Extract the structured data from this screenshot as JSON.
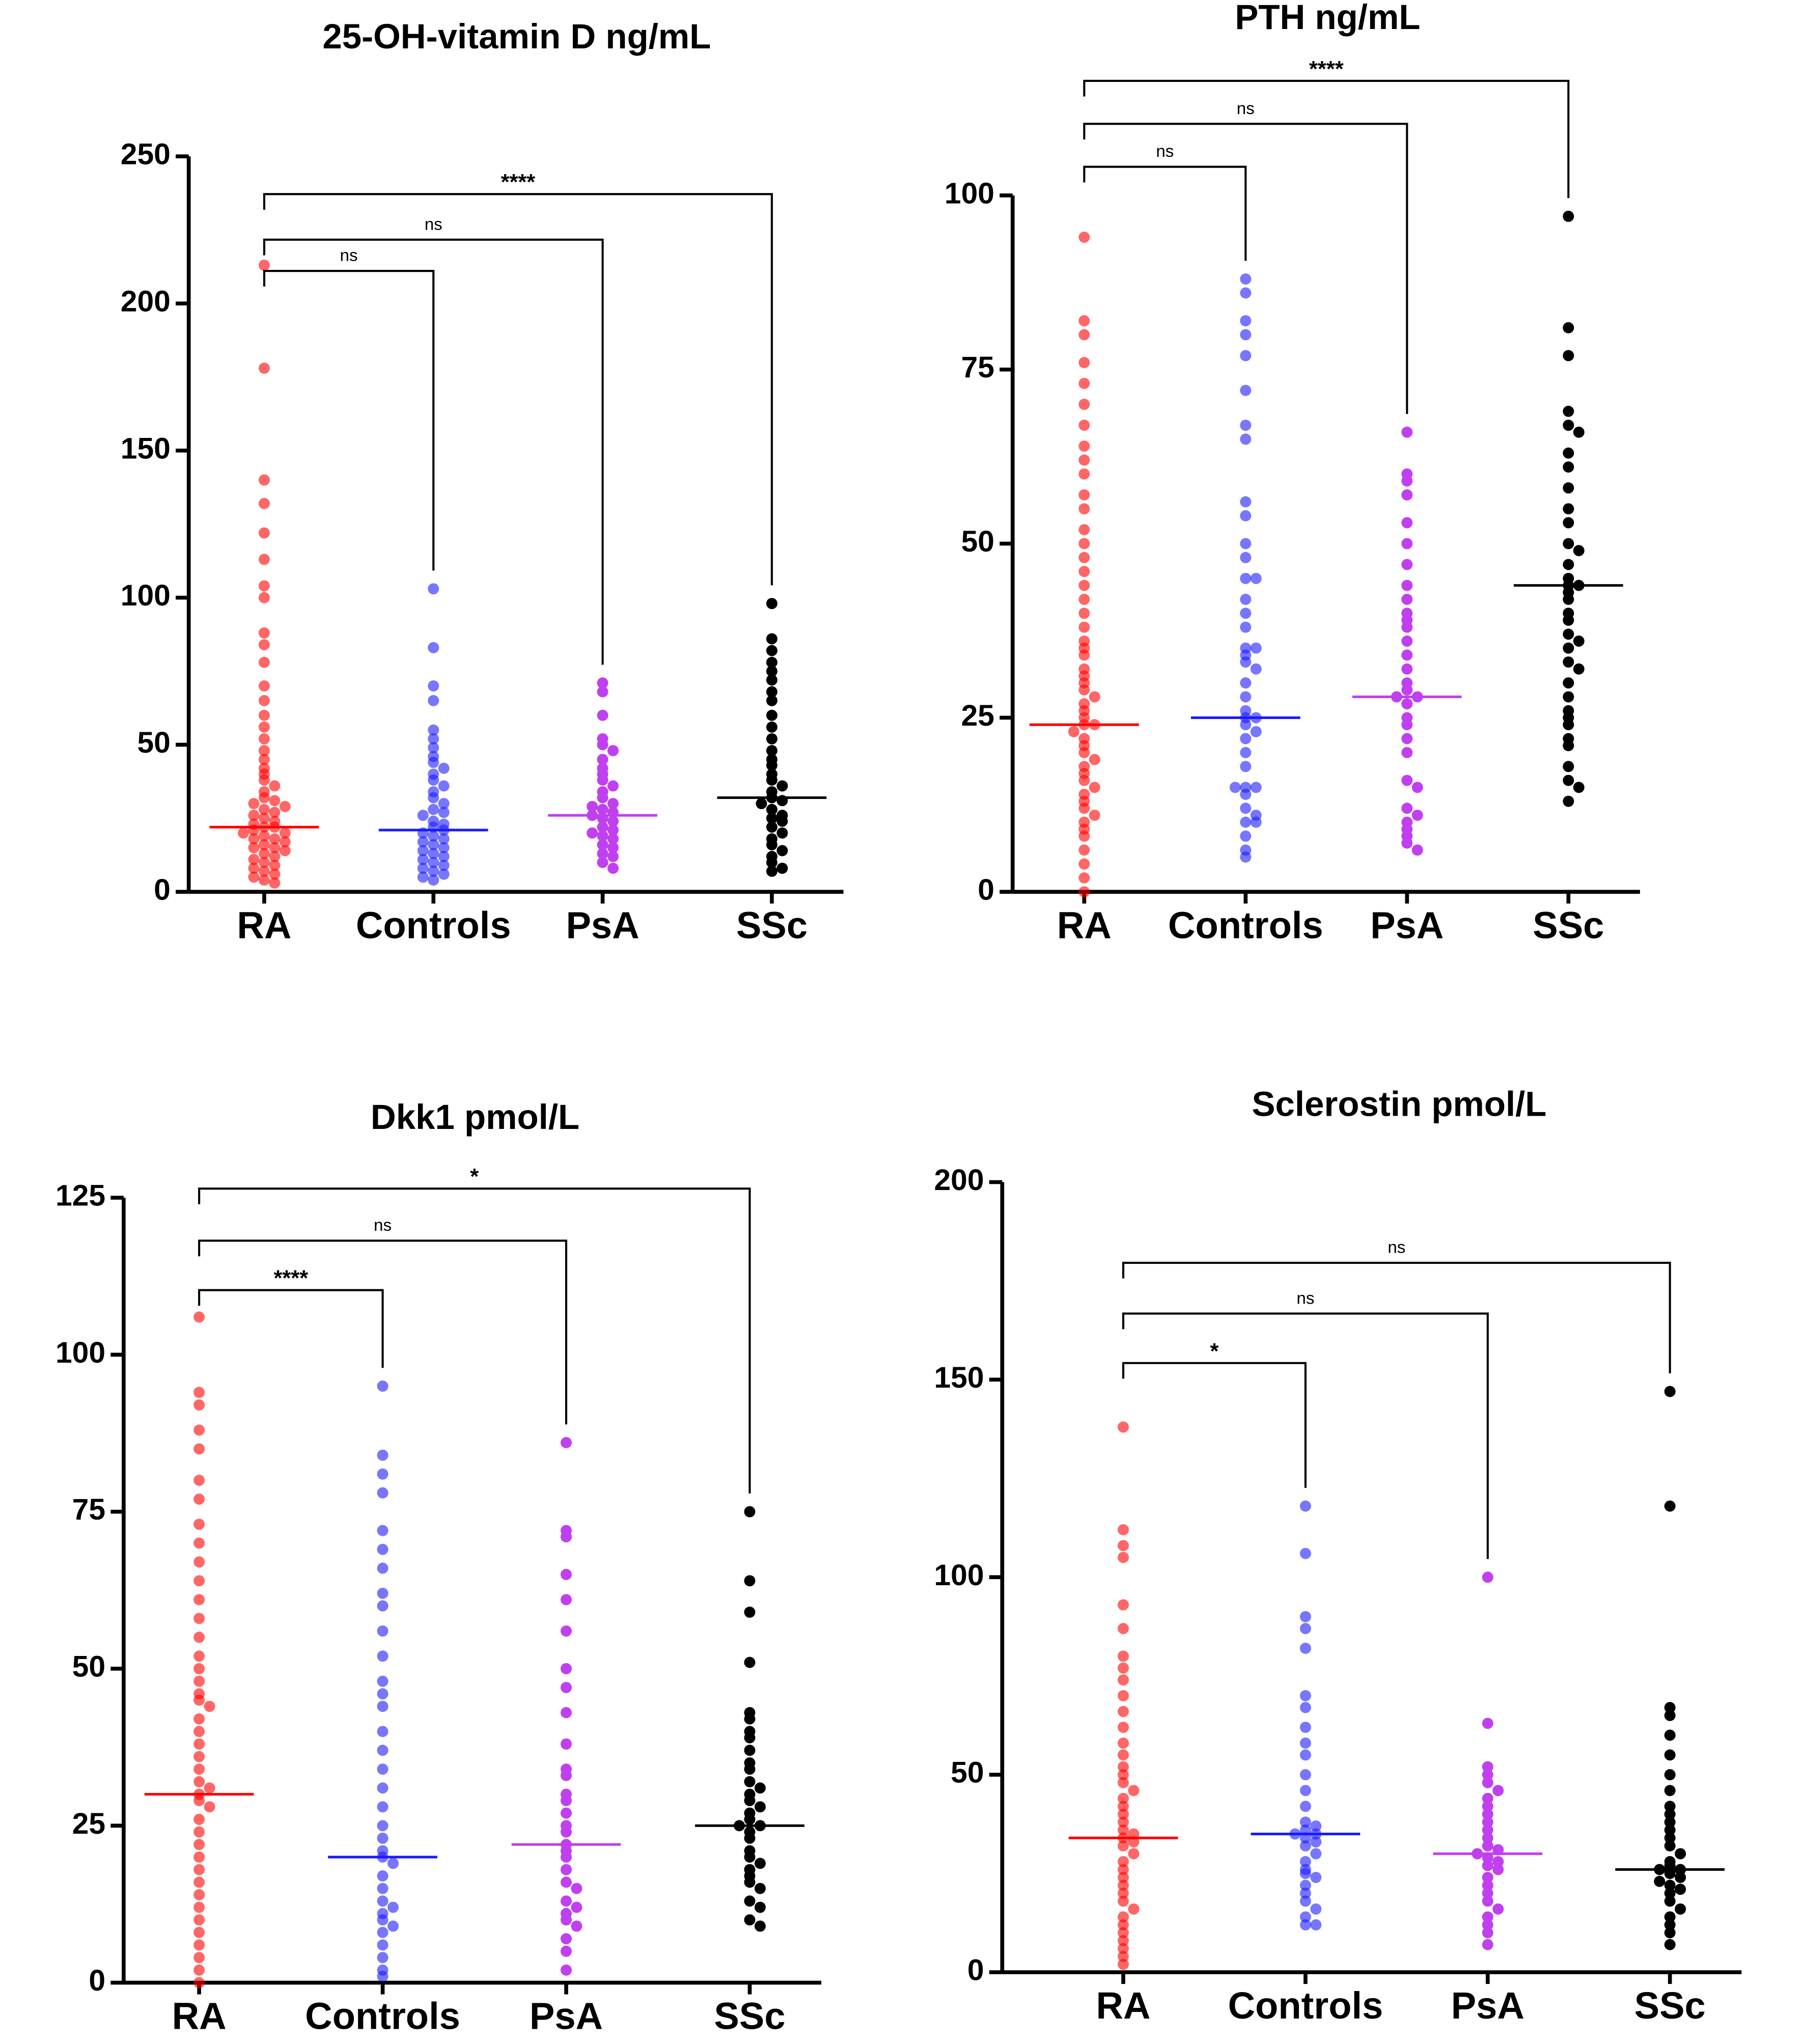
{
  "chart_data": [
    {
      "type": "beeswarm",
      "title": "25-OH-vitamin D ng/mL",
      "ylim": [
        0,
        250
      ],
      "yticks": [
        0,
        50,
        100,
        150,
        200,
        250
      ],
      "series": [
        {
          "name": "RA",
          "color": "#ff0000",
          "median": 22,
          "values": [
            213,
            178,
            140,
            132,
            122,
            113,
            104,
            100,
            88,
            84,
            78,
            70,
            65,
            60,
            56,
            52,
            48,
            45,
            42,
            40,
            38,
            36,
            34,
            32,
            31,
            30,
            29,
            28,
            27,
            26,
            25,
            24,
            23,
            22,
            22,
            21,
            20,
            20,
            19,
            18,
            18,
            17,
            16,
            15,
            15,
            14,
            13,
            12,
            11,
            10,
            9,
            8,
            7,
            6,
            5,
            4,
            3
          ]
        },
        {
          "name": "Controls",
          "color": "#1a1aff",
          "median": 21,
          "values": [
            103,
            83,
            70,
            65,
            55,
            52,
            49,
            46,
            44,
            42,
            40,
            38,
            36,
            34,
            32,
            30,
            28,
            27,
            26,
            24,
            23,
            22,
            21,
            20,
            19,
            18,
            17,
            16,
            15,
            14,
            13,
            12,
            11,
            10,
            9,
            8,
            7,
            6,
            5,
            4
          ]
        },
        {
          "name": "PsA",
          "color": "#c040f0",
          "median": 26,
          "values": [
            71,
            68,
            60,
            52,
            50,
            48,
            45,
            42,
            40,
            38,
            36,
            34,
            32,
            30,
            29,
            28,
            27,
            26,
            25,
            24,
            22,
            21,
            20,
            19,
            18,
            16,
            15,
            13,
            12,
            10,
            8
          ]
        },
        {
          "name": "SSc",
          "color": "#000000",
          "median": 32,
          "values": [
            98,
            86,
            82,
            78,
            75,
            72,
            68,
            65,
            60,
            56,
            52,
            48,
            45,
            43,
            40,
            38,
            36,
            34,
            32,
            31,
            30,
            28,
            26,
            25,
            24,
            22,
            20,
            18,
            16,
            14,
            12,
            10,
            8,
            7
          ]
        }
      ],
      "comparisons": [
        {
          "groups": [
            0,
            1
          ],
          "label": "ns"
        },
        {
          "groups": [
            0,
            2
          ],
          "label": "ns"
        },
        {
          "groups": [
            0,
            3
          ],
          "label": "****"
        }
      ]
    },
    {
      "type": "beeswarm",
      "title": "PTH ng/mL",
      "ylim": [
        0,
        100
      ],
      "yticks": [
        0,
        25,
        50,
        75,
        100
      ],
      "series": [
        {
          "name": "RA",
          "color": "#ff0000",
          "median": 24,
          "values": [
            94,
            82,
            80,
            76,
            73,
            70,
            67,
            64,
            62,
            60,
            57,
            55,
            52,
            50,
            48,
            46,
            44,
            42,
            40,
            38,
            36,
            35,
            34,
            32,
            31,
            30,
            29,
            28,
            27,
            26,
            25,
            24,
            24,
            23,
            22,
            21,
            20,
            19,
            18,
            17,
            16,
            15,
            14,
            13,
            12,
            11,
            10,
            9,
            8,
            6,
            4,
            2,
            0
          ]
        },
        {
          "name": "Controls",
          "color": "#1a1aff",
          "median": 25,
          "values": [
            88,
            86,
            82,
            80,
            77,
            72,
            67,
            65,
            56,
            54,
            50,
            48,
            45,
            45,
            42,
            40,
            38,
            35,
            35,
            34,
            33,
            32,
            30,
            28,
            26,
            25,
            25,
            24,
            23,
            22,
            20,
            18,
            15,
            15,
            15,
            14,
            12,
            11,
            10,
            10,
            8,
            6,
            5
          ]
        },
        {
          "name": "PsA",
          "color": "#c040f0",
          "median": 28,
          "values": [
            66,
            60,
            59,
            57,
            53,
            50,
            47,
            44,
            42,
            40,
            39,
            38,
            36,
            34,
            32,
            30,
            29,
            28,
            28,
            27,
            25,
            24,
            22,
            20,
            16,
            15,
            12,
            11,
            10,
            9,
            8,
            7,
            6
          ]
        },
        {
          "name": "SSc",
          "color": "#000000",
          "median": 44,
          "values": [
            97,
            81,
            77,
            69,
            67,
            66,
            63,
            61,
            58,
            55,
            53,
            50,
            49,
            47,
            45,
            44,
            44,
            43,
            42,
            40,
            39,
            37,
            36,
            35,
            33,
            32,
            30,
            28,
            26,
            25,
            24,
            22,
            21,
            18,
            16,
            15,
            13
          ]
        }
      ],
      "comparisons": [
        {
          "groups": [
            0,
            1
          ],
          "label": "ns"
        },
        {
          "groups": [
            0,
            2
          ],
          "label": "ns"
        },
        {
          "groups": [
            0,
            3
          ],
          "label": "****"
        }
      ]
    },
    {
      "type": "beeswarm",
      "title": "Dkk1 pmol/L",
      "ylim": [
        0,
        125
      ],
      "yticks": [
        0,
        25,
        50,
        75,
        100,
        125
      ],
      "series": [
        {
          "name": "RA",
          "color": "#ff0000",
          "median": 30,
          "values": [
            106,
            94,
            92,
            88,
            85,
            80,
            77,
            73,
            70,
            67,
            64,
            61,
            58,
            55,
            52,
            50,
            48,
            46,
            45,
            44,
            42,
            40,
            38,
            36,
            34,
            32,
            31,
            30,
            29,
            28,
            26,
            24,
            22,
            20,
            18,
            16,
            14,
            12,
            10,
            8,
            6,
            4,
            2,
            0
          ]
        },
        {
          "name": "Controls",
          "color": "#1a1aff",
          "median": 20,
          "values": [
            95,
            84,
            81,
            78,
            72,
            69,
            66,
            62,
            60,
            56,
            52,
            48,
            46,
            44,
            40,
            37,
            34,
            31,
            28,
            25,
            23,
            21,
            20,
            19,
            17,
            15,
            13,
            12,
            11,
            10,
            9,
            8,
            6,
            4,
            2,
            1
          ]
        },
        {
          "name": "PsA",
          "color": "#c040f0",
          "median": 22,
          "values": [
            86,
            72,
            71,
            65,
            61,
            56,
            50,
            47,
            43,
            38,
            34,
            33,
            30,
            29,
            27,
            25,
            24,
            22,
            21,
            20,
            18,
            16,
            15,
            13,
            12,
            11,
            10,
            9,
            7,
            5,
            2
          ]
        },
        {
          "name": "SSc",
          "color": "#000000",
          "median": 25,
          "values": [
            75,
            64,
            59,
            51,
            43,
            42,
            40,
            39,
            37,
            35,
            34,
            32,
            31,
            30,
            29,
            28,
            27,
            26,
            25,
            25,
            24,
            23,
            21,
            20,
            19,
            18,
            17,
            16,
            15,
            13,
            12,
            10,
            9
          ]
        }
      ],
      "comparisons": [
        {
          "groups": [
            0,
            1
          ],
          "label": "****"
        },
        {
          "groups": [
            0,
            2
          ],
          "label": "ns"
        },
        {
          "groups": [
            0,
            3
          ],
          "label": "*"
        }
      ]
    },
    {
      "type": "beeswarm",
      "title": "Sclerostin pmol/L",
      "ylim": [
        0,
        200
      ],
      "yticks": [
        0,
        50,
        100,
        150,
        200
      ],
      "series": [
        {
          "name": "RA",
          "color": "#ff0000",
          "median": 34,
          "values": [
            138,
            112,
            108,
            105,
            93,
            87,
            80,
            77,
            74,
            70,
            66,
            62,
            58,
            55,
            52,
            50,
            48,
            46,
            44,
            42,
            40,
            38,
            36,
            35,
            34,
            33,
            32,
            30,
            28,
            26,
            24,
            22,
            20,
            18,
            16,
            14,
            12,
            10,
            8,
            6,
            4,
            2
          ]
        },
        {
          "name": "Controls",
          "color": "#1a1aff",
          "median": 35,
          "values": [
            118,
            106,
            90,
            87,
            82,
            70,
            67,
            62,
            58,
            55,
            50,
            46,
            42,
            38,
            37,
            36,
            35,
            35,
            34,
            33,
            32,
            30,
            28,
            26,
            25,
            24,
            22,
            20,
            18,
            16,
            14,
            12,
            12
          ]
        },
        {
          "name": "PsA",
          "color": "#c040f0",
          "median": 30,
          "values": [
            100,
            63,
            52,
            50,
            48,
            46,
            44,
            42,
            40,
            38,
            36,
            34,
            32,
            31,
            30,
            29,
            28,
            27,
            26,
            24,
            22,
            20,
            18,
            16,
            14,
            12,
            10,
            7
          ]
        },
        {
          "name": "SSc",
          "color": "#000000",
          "median": 26,
          "values": [
            147,
            118,
            67,
            65,
            60,
            55,
            50,
            46,
            42,
            40,
            38,
            36,
            34,
            32,
            30,
            28,
            27,
            26,
            26,
            25,
            24,
            23,
            22,
            21,
            20,
            18,
            16,
            14,
            12,
            10,
            7
          ]
        }
      ],
      "comparisons": [
        {
          "groups": [
            0,
            1
          ],
          "label": "*"
        },
        {
          "groups": [
            0,
            2
          ],
          "label": "ns"
        },
        {
          "groups": [
            0,
            3
          ],
          "label": "ns"
        }
      ]
    }
  ]
}
